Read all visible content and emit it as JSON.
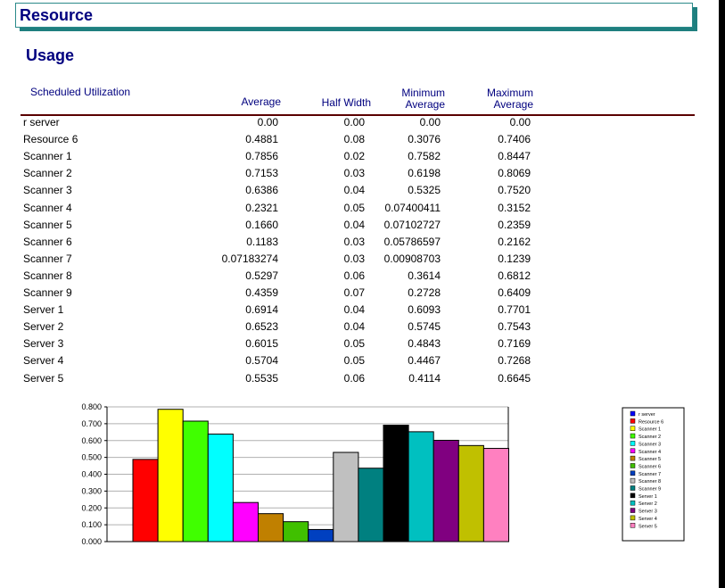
{
  "header": {
    "title": "Resource"
  },
  "section": {
    "title": "Usage"
  },
  "table": {
    "label": "Scheduled Utilization",
    "col_average": "Average",
    "col_half_width": "Half Width",
    "col_min_1": "Minimum",
    "col_min_2": "Average",
    "col_max_1": "Maximum",
    "col_max_2": "Average",
    "rows": [
      {
        "name": "r server",
        "avg": "0.00",
        "hw": "0.00",
        "min": "0.00",
        "max": "0.00"
      },
      {
        "name": "Resource 6",
        "avg": "0.4881",
        "hw": "0.08",
        "min": "0.3076",
        "max": "0.7406"
      },
      {
        "name": "Scanner 1",
        "avg": "0.7856",
        "hw": "0.02",
        "min": "0.7582",
        "max": "0.8447"
      },
      {
        "name": "Scanner 2",
        "avg": "0.7153",
        "hw": "0.03",
        "min": "0.6198",
        "max": "0.8069"
      },
      {
        "name": "Scanner 3",
        "avg": "0.6386",
        "hw": "0.04",
        "min": "0.5325",
        "max": "0.7520"
      },
      {
        "name": "Scanner 4",
        "avg": "0.2321",
        "hw": "0.05",
        "min": "0.07400411",
        "max": "0.3152"
      },
      {
        "name": "Scanner 5",
        "avg": "0.1660",
        "hw": "0.04",
        "min": "0.07102727",
        "max": "0.2359"
      },
      {
        "name": "Scanner 6",
        "avg": "0.1183",
        "hw": "0.03",
        "min": "0.05786597",
        "max": "0.2162"
      },
      {
        "name": "Scanner 7",
        "avg": "0.07183274",
        "hw": "0.03",
        "min": "0.00908703",
        "max": "0.1239"
      },
      {
        "name": "Scanner 8",
        "avg": "0.5297",
        "hw": "0.06",
        "min": "0.3614",
        "max": "0.6812"
      },
      {
        "name": "Scanner 9",
        "avg": "0.4359",
        "hw": "0.07",
        "min": "0.2728",
        "max": "0.6409"
      },
      {
        "name": "Server 1",
        "avg": "0.6914",
        "hw": "0.04",
        "min": "0.6093",
        "max": "0.7701"
      },
      {
        "name": "Server 2",
        "avg": "0.6523",
        "hw": "0.04",
        "min": "0.5745",
        "max": "0.7543"
      },
      {
        "name": "Server 3",
        "avg": "0.6015",
        "hw": "0.05",
        "min": "0.4843",
        "max": "0.7169"
      },
      {
        "name": "Server 4",
        "avg": "0.5704",
        "hw": "0.05",
        "min": "0.4467",
        "max": "0.7268"
      },
      {
        "name": "Server 5",
        "avg": "0.5535",
        "hw": "0.06",
        "min": "0.4114",
        "max": "0.6645"
      }
    ]
  },
  "chart_data": {
    "type": "bar",
    "categories": [
      "r server",
      "Resource 6",
      "Scanner 1",
      "Scanner 2",
      "Scanner 3",
      "Scanner 4",
      "Scanner 5",
      "Scanner 6",
      "Scanner 7",
      "Scanner 8",
      "Scanner 9",
      "Server 1",
      "Server 2",
      "Server 3",
      "Server 4",
      "Server 5"
    ],
    "values": [
      0.0,
      0.4881,
      0.7856,
      0.7153,
      0.6386,
      0.2321,
      0.166,
      0.1183,
      0.07183274,
      0.5297,
      0.4359,
      0.6914,
      0.6523,
      0.6015,
      0.5704,
      0.5535
    ],
    "colors": [
      "#0000ff",
      "#ff0000",
      "#ffff00",
      "#40ff00",
      "#00ffff",
      "#ff00ff",
      "#c08000",
      "#40c000",
      "#0040c0",
      "#c0c0c0",
      "#008080",
      "#000000",
      "#00c0c0",
      "#800080",
      "#c0c000",
      "#ff80c0"
    ],
    "ylim": [
      0,
      0.8
    ],
    "yticks": [
      "0.000",
      "0.100",
      "0.200",
      "0.300",
      "0.400",
      "0.500",
      "0.600",
      "0.700",
      "0.800"
    ],
    "grid": true,
    "legend": "right"
  }
}
